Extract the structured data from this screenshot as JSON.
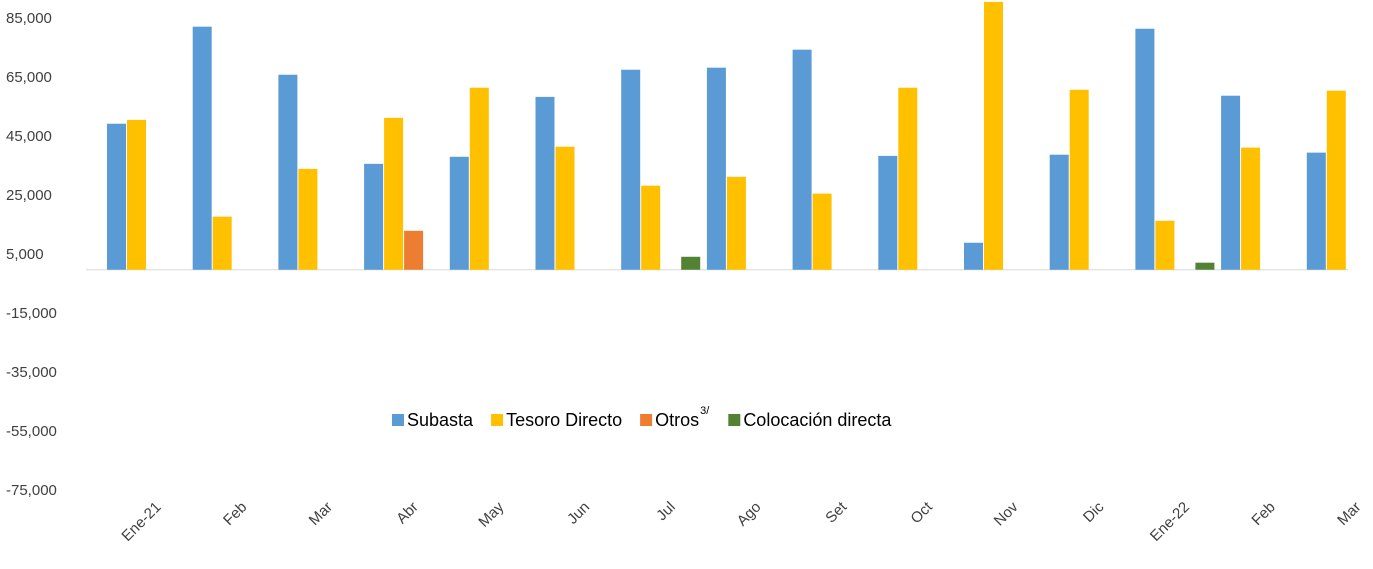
{
  "chart_data": {
    "type": "bar",
    "categories": [
      "Ene-21",
      "Feb",
      "Mar",
      "Abr",
      "May",
      "Jun",
      "Jul",
      "Ago",
      "Set",
      "Oct",
      "Nov",
      "Dic",
      "Ene-22",
      "Feb",
      "Mar"
    ],
    "series": [
      {
        "name": "Subasta",
        "color": "#5b9bd5",
        "values": [
          49500,
          82400,
          66100,
          35900,
          38300,
          58600,
          67800,
          68500,
          74600,
          38600,
          9150,
          39000,
          81700,
          59000,
          39700
        ]
      },
      {
        "name": "Tesoro Directo",
        "color": "#ffc000",
        "values": [
          50800,
          18000,
          34200,
          51500,
          61700,
          41700,
          28500,
          31500,
          25800,
          61700,
          90800,
          61000,
          16600,
          41400,
          60700
        ]
      },
      {
        "name": "Otros",
        "footnote": "3/",
        "color": "#ed7d31",
        "values": [
          null,
          null,
          null,
          13200,
          null,
          null,
          null,
          null,
          null,
          null,
          null,
          null,
          null,
          null,
          null
        ]
      },
      {
        "name": "Colocación directa",
        "color": "#548235",
        "values": [
          null,
          null,
          null,
          null,
          null,
          null,
          4400,
          null,
          null,
          null,
          null,
          null,
          2400,
          null,
          null
        ]
      }
    ],
    "ylim": [
      -75000,
      91000
    ],
    "yticks": [
      {
        "value": -75000,
        "label": "-75,000"
      },
      {
        "value": -55000,
        "label": "-55,000"
      },
      {
        "value": -35000,
        "label": "-35,000"
      },
      {
        "value": -15000,
        "label": "-15,000"
      },
      {
        "value": 5000,
        "label": "5,000"
      },
      {
        "value": 25000,
        "label": "25,000"
      },
      {
        "value": 45000,
        "label": "45,000"
      },
      {
        "value": 65000,
        "label": "65,000"
      },
      {
        "value": 85000,
        "label": "85,000"
      }
    ],
    "grid": false,
    "legend": "center"
  }
}
